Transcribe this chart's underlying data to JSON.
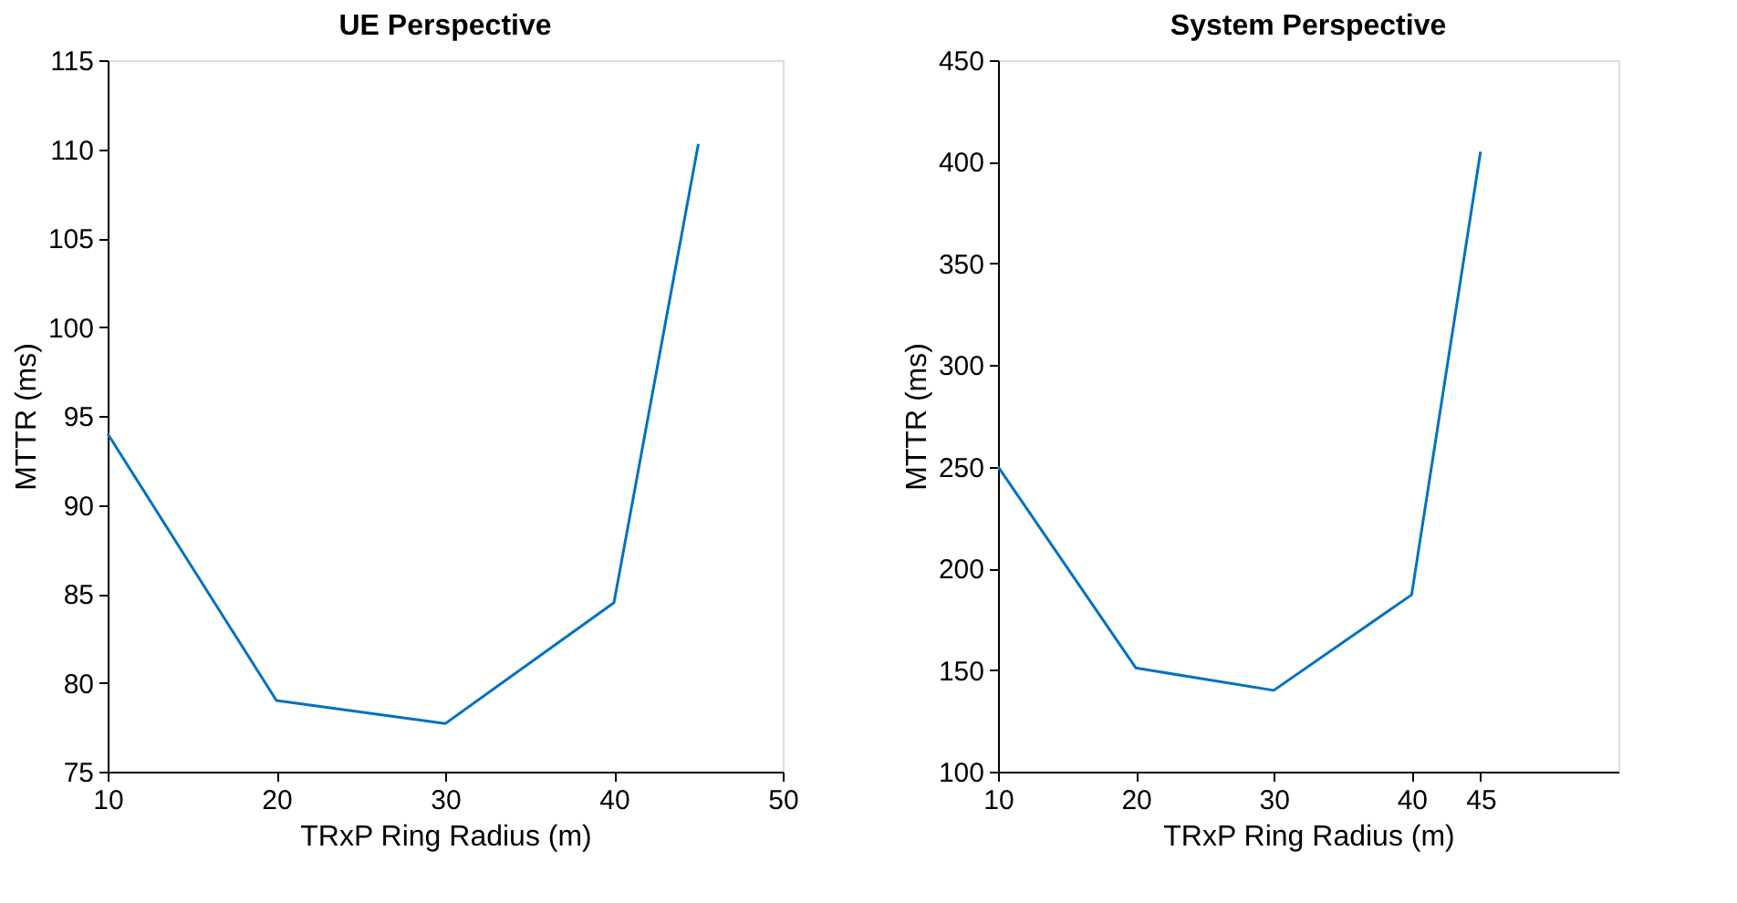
{
  "chart_data": [
    {
      "type": "line",
      "title": "UE Perspective",
      "xlabel": "TRxP Ring Radius (m)",
      "ylabel": "MTTR (ms)",
      "x": [
        10,
        20,
        30,
        40,
        45
      ],
      "series": [
        {
          "color": "#0072bd",
          "values": [
            94,
            79,
            77.7,
            84.5,
            110.3
          ]
        }
      ],
      "xlim": [
        10,
        50
      ],
      "xticks": [
        10,
        20,
        30,
        40,
        50
      ],
      "ylim": [
        75,
        115
      ],
      "yticks": [
        75,
        80,
        85,
        90,
        95,
        100,
        105,
        110,
        115
      ],
      "grid": false,
      "marker": "none",
      "line_style": "solid"
    },
    {
      "type": "line",
      "title": "System Perspective",
      "xlabel": "TRxP Ring Radius (m)",
      "ylabel": "MTTR (ms)",
      "x": [
        10,
        20,
        30,
        40,
        45
      ],
      "series": [
        {
          "color": "#0072bd",
          "values": [
            250,
            151,
            140,
            187,
            405
          ]
        }
      ],
      "xlim": [
        10,
        55
      ],
      "xticks": [
        10,
        20,
        30,
        40,
        45
      ],
      "ylim": [
        100,
        450
      ],
      "yticks": [
        100,
        150,
        200,
        250,
        300,
        350,
        400,
        450
      ],
      "grid": false,
      "marker": "none",
      "line_style": "solid"
    }
  ]
}
